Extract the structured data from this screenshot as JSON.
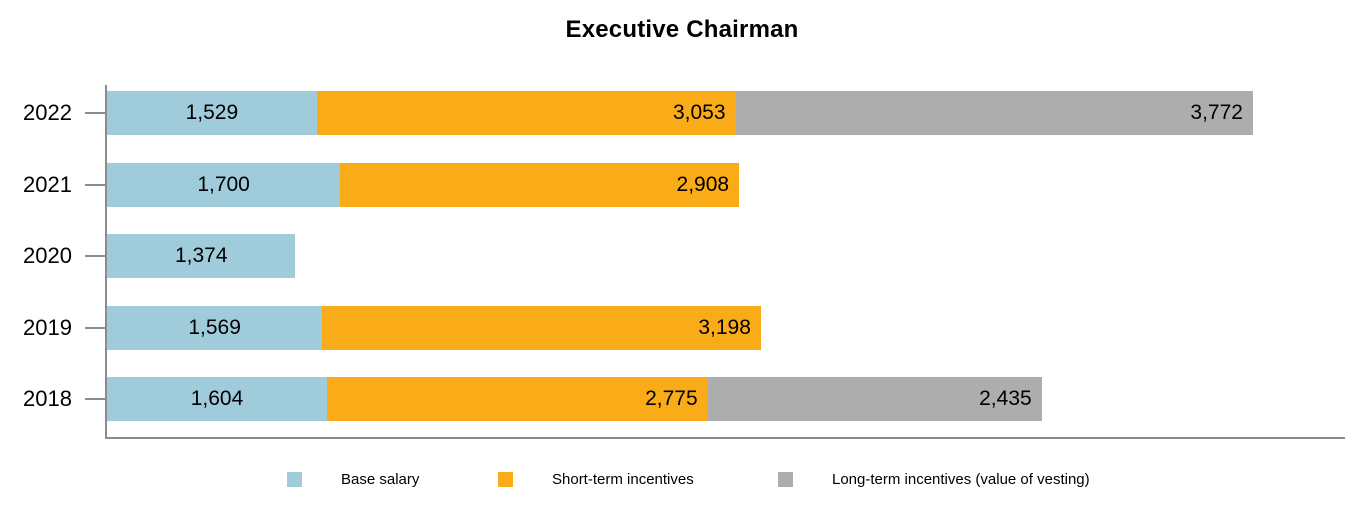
{
  "title": "Executive Chairman",
  "chart_data": {
    "type": "bar",
    "orientation": "horizontal",
    "stacked": true,
    "title": "Executive Chairman",
    "categories": [
      "2022",
      "2021",
      "2020",
      "2019",
      "2018"
    ],
    "series": [
      {
        "name": "Base salary",
        "color": "#9FCBDB",
        "label_position": "center",
        "values": [
          1529,
          1700,
          1374,
          1569,
          1604
        ]
      },
      {
        "name": "Short-term incentives",
        "color": "#F9AB18",
        "label_position": "inside-end",
        "values": [
          3053,
          2908,
          null,
          3198,
          2775
        ]
      },
      {
        "name": "Long-term incentives (value of vesting)",
        "color": "#ADADAD",
        "label_position": "inside-end",
        "values": [
          3772,
          null,
          null,
          null,
          2435
        ]
      }
    ],
    "totals": [
      8354,
      4608,
      1374,
      4767,
      6814
    ],
    "value_format": "#,##0",
    "xlim": [
      0,
      9025
    ],
    "grid": false,
    "legend_position": "bottom",
    "axis_color": "#8C8C8C"
  },
  "legend": {
    "items": [
      {
        "label": "Base salary",
        "color": "#9FCBDB"
      },
      {
        "label": "Short-term incentives",
        "color": "#F9AB18"
      },
      {
        "label": "Long-term incentives (value of vesting)",
        "color": "#ADADAD"
      }
    ]
  }
}
